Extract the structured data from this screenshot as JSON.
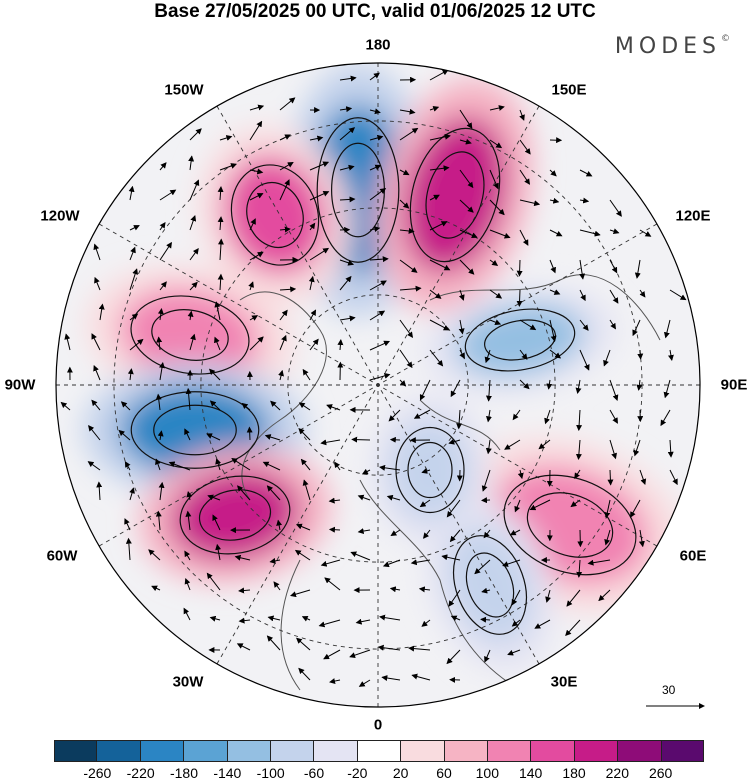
{
  "title": "Base 27/05/2025 00 UTC, valid 01/06/2025 12 UTC",
  "brand": {
    "name": "MODES",
    "mark": "©"
  },
  "longitude_labels": [
    {
      "id": "lon-180",
      "text": "180"
    },
    {
      "id": "lon-150e",
      "text": "150E"
    },
    {
      "id": "lon-120e",
      "text": "120E"
    },
    {
      "id": "lon-90e",
      "text": "90E"
    },
    {
      "id": "lon-60e",
      "text": "60E"
    },
    {
      "id": "lon-30e",
      "text": "30E"
    },
    {
      "id": "lon-0",
      "text": "0"
    },
    {
      "id": "lon-30w",
      "text": "30W"
    },
    {
      "id": "lon-60w",
      "text": "60W"
    },
    {
      "id": "lon-90w",
      "text": "90W"
    },
    {
      "id": "lon-120w",
      "text": "120W"
    },
    {
      "id": "lon-150w",
      "text": "150W"
    }
  ],
  "wind_scale": {
    "label": "30"
  },
  "colorbar": {
    "ticks": [
      "-260",
      "-220",
      "-180",
      "-140",
      "-100",
      "-60",
      "-20",
      "20",
      "60",
      "100",
      "140",
      "180",
      "220",
      "260"
    ],
    "colors": [
      "#0b3b5e",
      "#14629a",
      "#2b85c4",
      "#5ba3d4",
      "#94bfe2",
      "#c4d3ec",
      "#e4e4f3",
      "#ffffff",
      "#f9dcdf",
      "#f6b4c4",
      "#f183b2",
      "#e34b9f",
      "#c61c88",
      "#8e0c78",
      "#5a0a6e"
    ]
  },
  "anomaly_centers": [
    {
      "id": "low-north-pacific",
      "sign": "negative",
      "value": -220
    },
    {
      "id": "high-east-siberia",
      "sign": "positive",
      "value": 200
    },
    {
      "id": "high-alaska",
      "sign": "positive",
      "value": 140
    },
    {
      "id": "high-canada-west",
      "sign": "positive",
      "value": 100
    },
    {
      "id": "low-hudson",
      "sign": "negative",
      "value": -200
    },
    {
      "id": "high-atlantic",
      "sign": "positive",
      "value": 180
    },
    {
      "id": "low-central-siberia",
      "sign": "negative",
      "value": -120
    },
    {
      "id": "high-caspian",
      "sign": "positive",
      "value": 110
    },
    {
      "id": "low-scandinavia",
      "sign": "negative",
      "value": -70
    },
    {
      "id": "low-mediterranean",
      "sign": "negative",
      "value": -80
    }
  ]
}
